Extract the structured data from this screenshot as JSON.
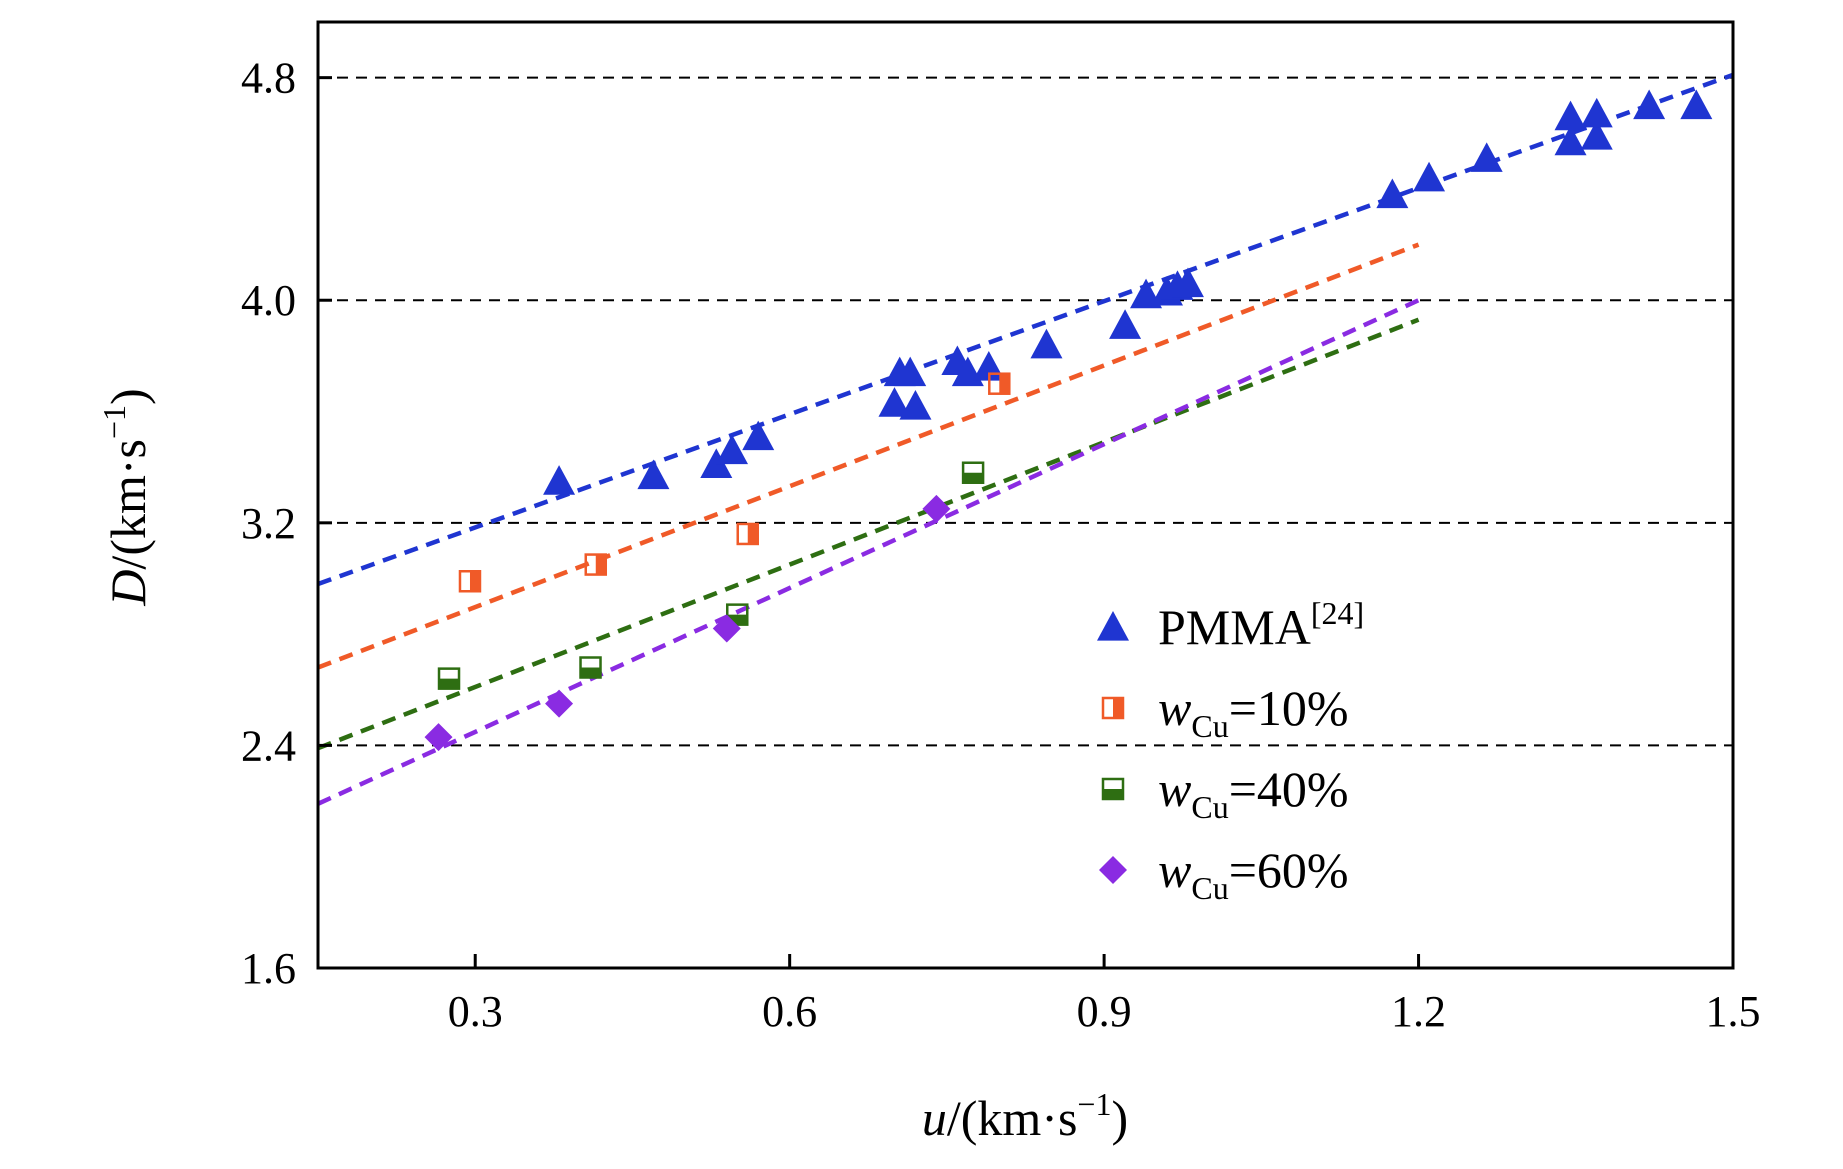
{
  "chart_data": {
    "type": "scatter",
    "xlabel": {
      "italic": "u",
      "rest": "/(km·s",
      "sup": "−1",
      "close": ")"
    },
    "ylabel": {
      "italic": "D",
      "rest": "/(km·s",
      "sup": "−1",
      "close": ")"
    },
    "xlim": [
      0.15,
      1.5
    ],
    "ylim": [
      1.6,
      5.0
    ],
    "x_ticks": [
      0.3,
      0.6,
      0.9,
      1.2,
      1.5
    ],
    "y_ticks": [
      1.6,
      2.4,
      3.2,
      4.0,
      4.8
    ],
    "x_tick_labels": [
      "0.3",
      "0.6",
      "0.9",
      "1.2",
      "1.5"
    ],
    "y_tick_labels": [
      "1.6",
      "2.4",
      "3.2",
      "4.0",
      "4.8"
    ],
    "grid": {
      "axis": "y",
      "style": "dashed",
      "lines_at": [
        2.4,
        3.2,
        4.0,
        4.8
      ]
    },
    "legend_position": "lower-right",
    "series": [
      {
        "key": "pmma",
        "legend_main": "PMMA",
        "legend_sub": "",
        "legend_tail": "",
        "legend_sup": "[24]",
        "marker": "triangle",
        "color": "#1f35d1",
        "points": [
          [
            0.38,
            3.35
          ],
          [
            0.47,
            3.37
          ],
          [
            0.53,
            3.41
          ],
          [
            0.545,
            3.46
          ],
          [
            0.57,
            3.51
          ],
          [
            0.7,
            3.63
          ],
          [
            0.72,
            3.62
          ],
          [
            0.705,
            3.74
          ],
          [
            0.715,
            3.74
          ],
          [
            0.76,
            3.78
          ],
          [
            0.77,
            3.74
          ],
          [
            0.79,
            3.76
          ],
          [
            0.845,
            3.84
          ],
          [
            0.92,
            3.91
          ],
          [
            0.94,
            4.02
          ],
          [
            0.96,
            4.03
          ],
          [
            0.97,
            4.05
          ],
          [
            0.98,
            4.06
          ],
          [
            1.175,
            4.38
          ],
          [
            1.21,
            4.44
          ],
          [
            1.265,
            4.51
          ],
          [
            1.345,
            4.57
          ],
          [
            1.37,
            4.59
          ],
          [
            1.345,
            4.66
          ],
          [
            1.37,
            4.67
          ],
          [
            1.42,
            4.7
          ],
          [
            1.465,
            4.7
          ]
        ],
        "fit": [
          [
            0.15,
            2.98
          ],
          [
            1.5,
            4.81
          ]
        ]
      },
      {
        "key": "cu10",
        "legend_main": "w",
        "legend_sub": "Cu",
        "legend_tail": "=10%",
        "legend_sup": "",
        "marker": "half-square-vertical",
        "color": "#f05a28",
        "points": [
          [
            0.295,
            2.99
          ],
          [
            0.415,
            3.05
          ],
          [
            0.56,
            3.16
          ],
          [
            0.8,
            3.7
          ]
        ],
        "fit": [
          [
            0.15,
            2.68
          ],
          [
            1.2,
            4.2
          ]
        ]
      },
      {
        "key": "cu40",
        "legend_main": "w",
        "legend_sub": "Cu",
        "legend_tail": "=40%",
        "legend_sup": "",
        "marker": "half-square-horizontal",
        "color": "#2e6e12",
        "points": [
          [
            0.275,
            2.64
          ],
          [
            0.41,
            2.68
          ],
          [
            0.55,
            2.87
          ],
          [
            0.775,
            3.38
          ]
        ],
        "fit": [
          [
            0.15,
            2.39
          ],
          [
            1.2,
            3.93
          ]
        ]
      },
      {
        "key": "cu60",
        "legend_main": "w",
        "legend_sub": "Cu",
        "legend_tail": "=60%",
        "legend_sup": "",
        "marker": "diamond",
        "color": "#8a2be2",
        "points": [
          [
            0.265,
            2.43
          ],
          [
            0.38,
            2.55
          ],
          [
            0.54,
            2.82
          ],
          [
            0.74,
            3.25
          ]
        ],
        "fit": [
          [
            0.15,
            2.19
          ],
          [
            1.2,
            4.0
          ]
        ]
      }
    ]
  }
}
